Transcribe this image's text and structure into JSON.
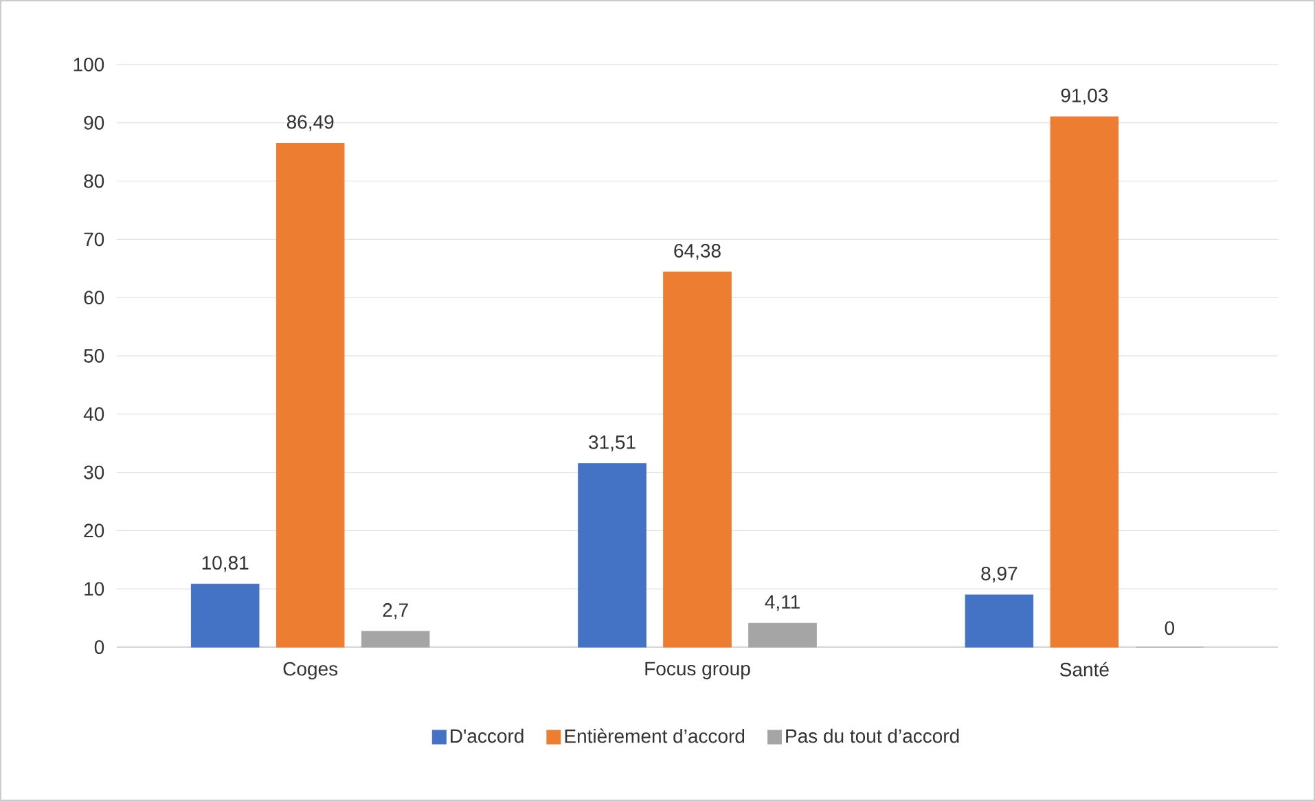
{
  "chart_data": {
    "type": "bar",
    "categories": [
      "Coges",
      "Focus group",
      "Santé"
    ],
    "series": [
      {
        "name": "D'accord",
        "color": "#4472c4",
        "values": [
          10.81,
          31.51,
          8.97
        ],
        "value_labels": [
          "10,81",
          "31,51",
          "8,97"
        ]
      },
      {
        "name": "Entièrement d’accord",
        "color": "#ed7d31",
        "values": [
          86.49,
          64.38,
          91.03
        ],
        "value_labels": [
          "86,49",
          "64,38",
          "91,03"
        ]
      },
      {
        "name": "Pas du tout d’accord",
        "color": "#a5a5a5",
        "values": [
          2.7,
          4.11,
          0
        ],
        "value_labels": [
          "2,7",
          "4,11",
          "0"
        ]
      }
    ],
    "ylim": [
      0,
      100
    ],
    "yticks": [
      0,
      10,
      20,
      30,
      40,
      50,
      60,
      70,
      80,
      90,
      100
    ],
    "grid": "y",
    "legend": "bottom"
  }
}
